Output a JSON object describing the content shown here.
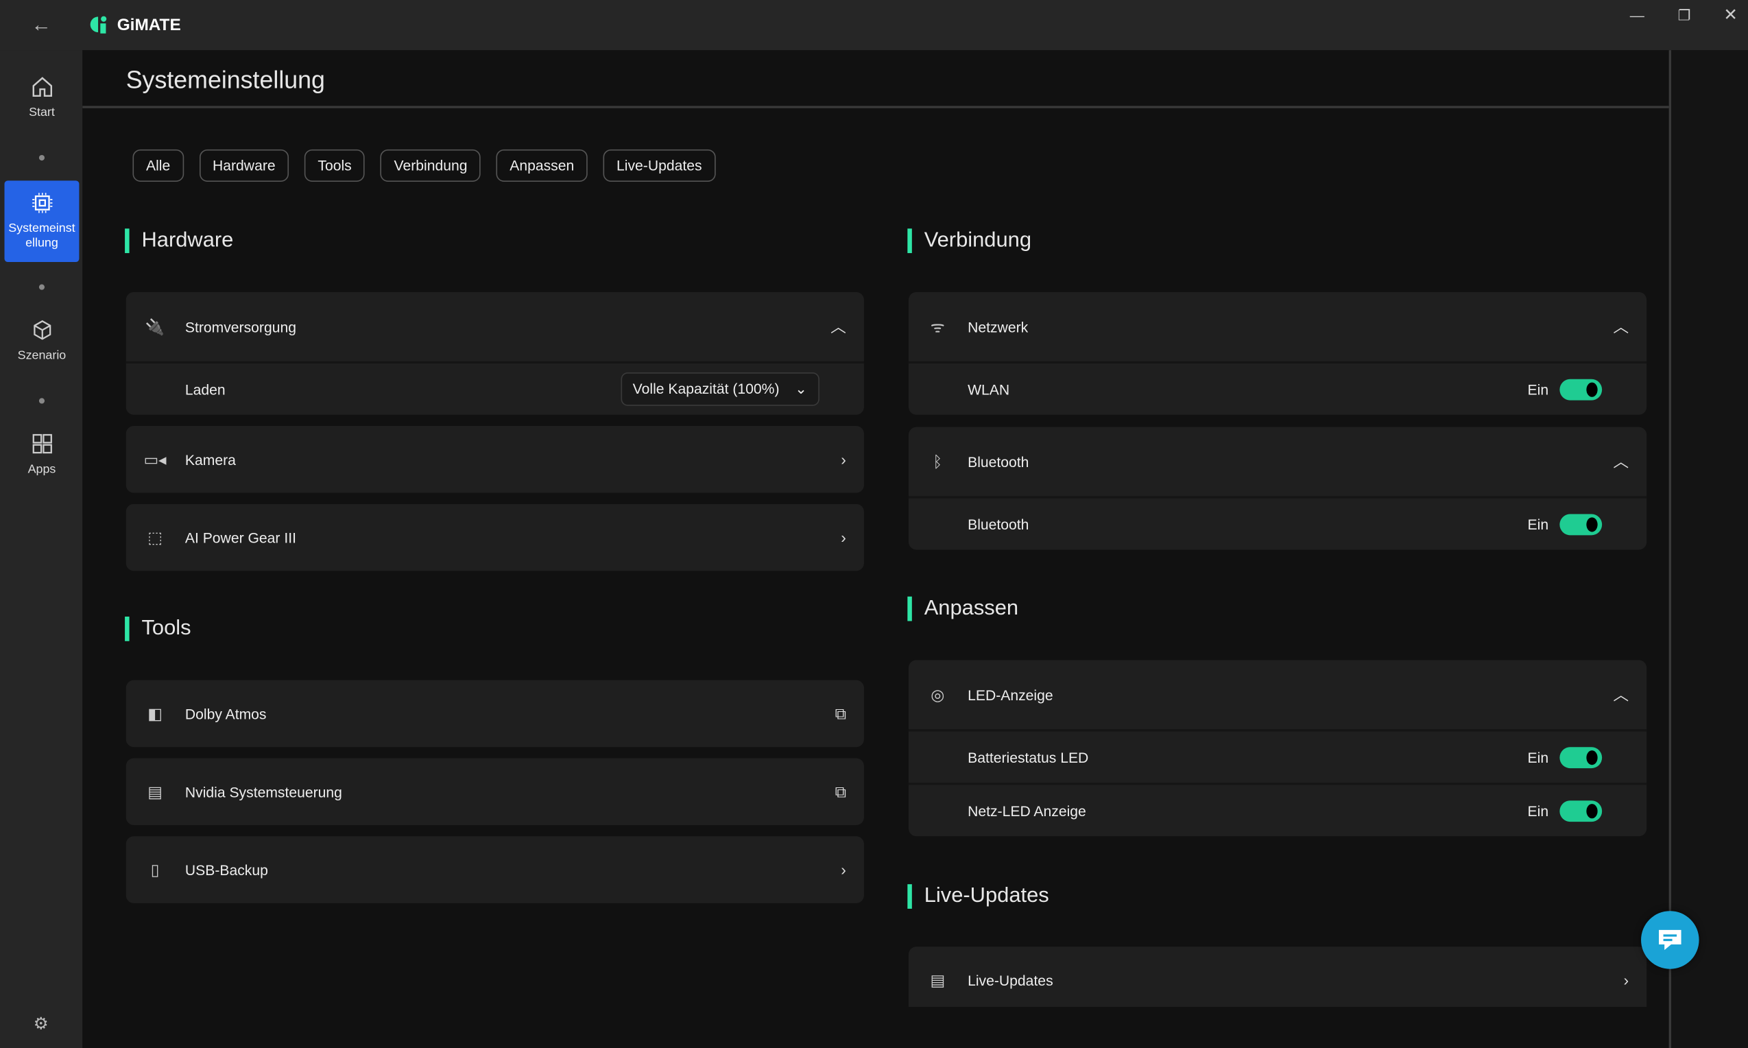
{
  "app": {
    "name": "GiMATE",
    "accent": "#2ee6a6",
    "active_nav": "#2563e6",
    "toggle_on": "#1fcc92"
  },
  "sidebar": {
    "items": [
      {
        "label": "Start",
        "icon": "home-icon"
      },
      {
        "label": "Systemeinstellung",
        "icon": "chip-icon"
      },
      {
        "label": "Szenario",
        "icon": "cube-icon"
      },
      {
        "label": "Apps",
        "icon": "grid-icon"
      }
    ]
  },
  "page": {
    "title": "Systemeinstellung"
  },
  "filters": [
    "Alle",
    "Hardware",
    "Tools",
    "Verbindung",
    "Anpassen",
    "Live-Updates"
  ],
  "hardware": {
    "title": "Hardware",
    "power": "Stromversorgung",
    "charge_label": "Laden",
    "charge_value": "Volle Kapazität (100%)",
    "camera": "Kamera",
    "ai": "AI Power Gear III"
  },
  "tools": {
    "title": "Tools",
    "dolby": "Dolby Atmos",
    "nvidia": "Nvidia Systemsteuerung",
    "usb": "USB-Backup"
  },
  "verbindung": {
    "title": "Verbindung",
    "network": "Netzwerk",
    "wlan": "WLAN",
    "wlan_state": "Ein",
    "bt_header": "Bluetooth",
    "bt": "Bluetooth",
    "bt_state": "Ein"
  },
  "anpassen": {
    "title": "Anpassen",
    "led": "LED-Anzeige",
    "battery_led": "Batteriestatus LED",
    "battery_led_state": "Ein",
    "net_led": "Netz-LED Anzeige",
    "net_led_state": "Ein"
  },
  "live": {
    "title": "Live-Updates",
    "item": "Live-Updates"
  }
}
